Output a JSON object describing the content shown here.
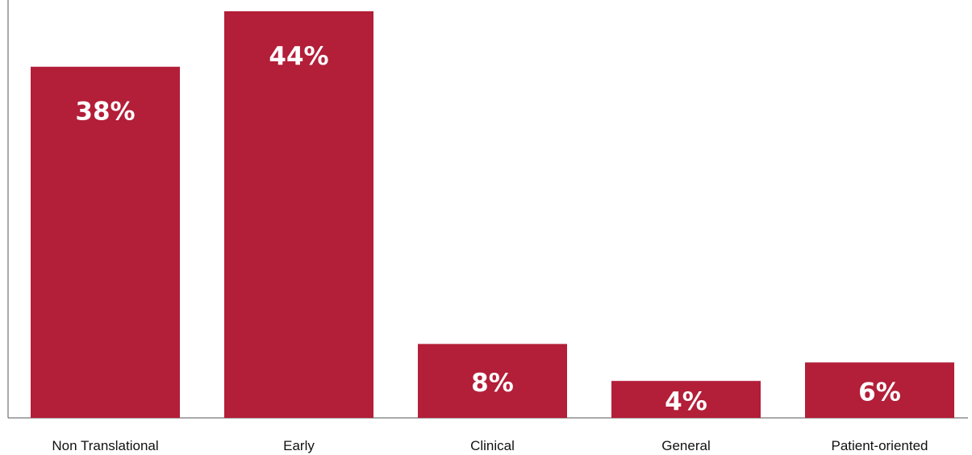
{
  "chart_data": {
    "type": "bar",
    "categories": [
      "Non Translational",
      "Early",
      "Clinical",
      "General",
      "Patient-oriented"
    ],
    "values": [
      38,
      44,
      8,
      4,
      6
    ],
    "value_labels": [
      "38%",
      "44%",
      "8%",
      "4%",
      "6%"
    ],
    "unit": "%",
    "title": "",
    "xlabel": "",
    "ylabel": "",
    "ylim": [
      0,
      44
    ],
    "grid": false,
    "legend": "none",
    "bar_color": "#b31e38",
    "label_color": "#ffffff"
  }
}
